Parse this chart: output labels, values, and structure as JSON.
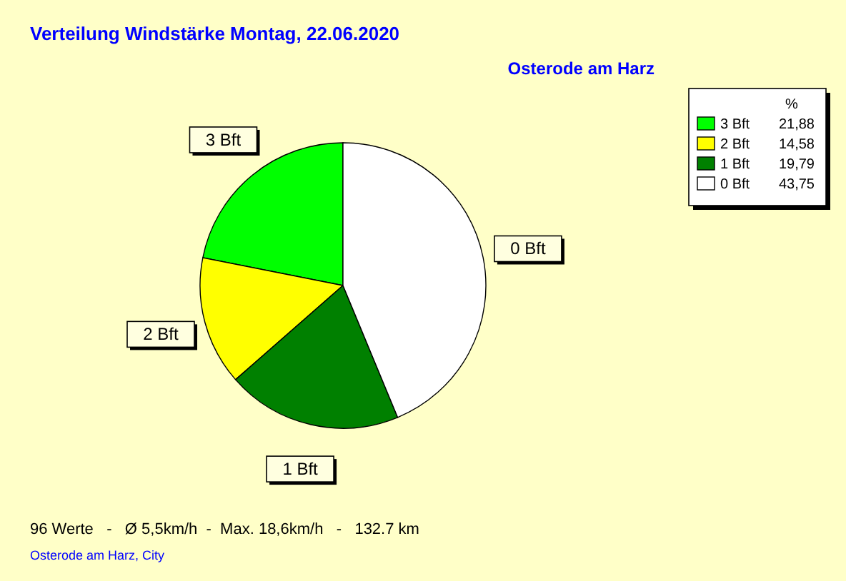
{
  "chart_data": {
    "type": "pie",
    "title": "Verteilung Windstärke  Montag, 22.06.2020",
    "subtitle": "Osterode am Harz",
    "categories": [
      "3 Bft",
      "2 Bft",
      "1 Bft",
      "0 Bft"
    ],
    "values": [
      21.88,
      14.58,
      19.79,
      43.75
    ],
    "colors": [
      "#00ff00",
      "#ffff00",
      "#008000",
      "#ffffff"
    ],
    "value_labels": [
      "21,88",
      "14,58",
      "19,79",
      "43,75"
    ],
    "legend_title": "%",
    "legend": "top right",
    "annotations": [
      "96 Werte   -   Ø 5,5km/h  -  Max. 18,6km/h   -   132.7 km",
      "Osterode am Harz, City"
    ]
  }
}
